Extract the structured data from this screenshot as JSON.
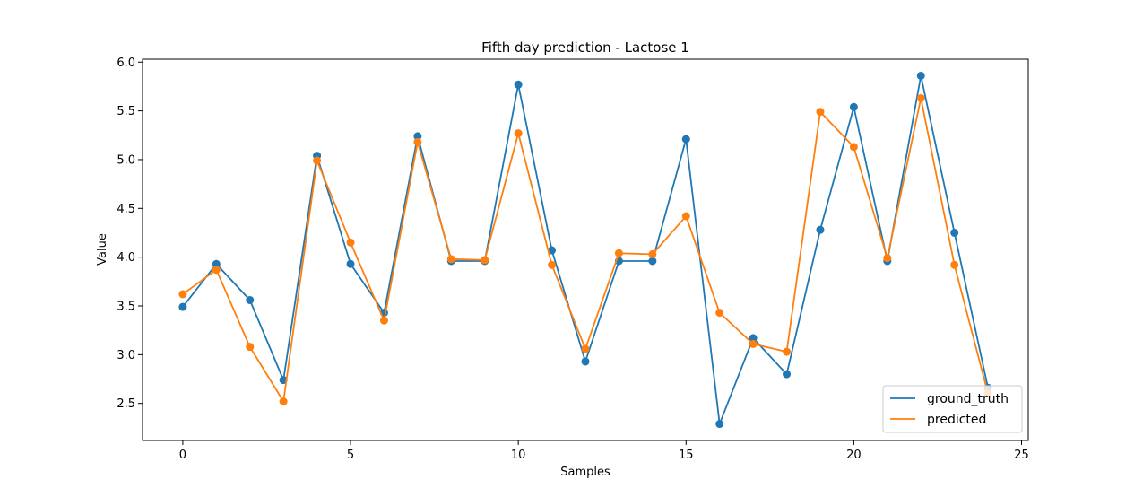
{
  "chart_data": {
    "type": "line",
    "title": "Fifth day prediction - Lactose 1",
    "xlabel": "Samples",
    "ylabel": "Value",
    "xlim": [
      -1.2,
      25.2
    ],
    "ylim": [
      2.12,
      6.03
    ],
    "xticks": [
      0,
      5,
      10,
      15,
      20,
      25
    ],
    "yticks": [
      2.5,
      3.0,
      3.5,
      4.0,
      4.5,
      5.0,
      5.5,
      6.0
    ],
    "xtick_labels": [
      "0",
      "5",
      "10",
      "15",
      "20",
      "25"
    ],
    "ytick_labels": [
      "2.5",
      "3.0",
      "3.5",
      "4.0",
      "4.5",
      "5.0",
      "5.5",
      "6.0"
    ],
    "legend_position": "bottom-right",
    "grid": false,
    "markers": true,
    "x": [
      0,
      1,
      2,
      3,
      4,
      5,
      6,
      7,
      8,
      9,
      10,
      11,
      12,
      13,
      14,
      15,
      16,
      17,
      18,
      19,
      20,
      21,
      22,
      23,
      24
    ],
    "series": [
      {
        "name": "ground_truth",
        "color": "#1f77b4",
        "values": [
          3.49,
          3.93,
          3.56,
          2.74,
          5.04,
          3.93,
          3.43,
          5.24,
          3.96,
          3.96,
          5.77,
          4.07,
          2.93,
          3.96,
          3.96,
          5.21,
          2.29,
          3.17,
          2.8,
          4.28,
          5.54,
          3.96,
          5.86,
          4.25,
          2.66
        ]
      },
      {
        "name": "predicted",
        "color": "#ff7f0e",
        "values": [
          3.62,
          3.87,
          3.08,
          2.52,
          4.99,
          4.15,
          3.35,
          5.18,
          3.98,
          3.97,
          5.27,
          3.92,
          3.06,
          4.04,
          4.03,
          4.42,
          3.43,
          3.11,
          3.03,
          5.49,
          5.13,
          3.99,
          5.63,
          3.92,
          2.6
        ]
      }
    ]
  }
}
